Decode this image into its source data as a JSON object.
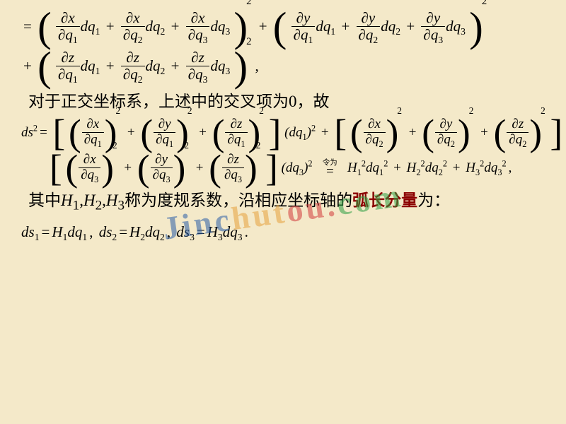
{
  "background_color": "#f4e9c9",
  "text_color": "#000000",
  "highlight_color": "#8b0000",
  "watermark": {
    "text": "Jinchutou.com",
    "colors": [
      "#2b5fa8",
      "#2b5fa8",
      "#2b5fa8",
      "#2b5fa8",
      "#e6a23c",
      "#e6a23c",
      "#e6a23c",
      "#d23c3c",
      "#d23c3c",
      "#d23c3c",
      "#2ea043",
      "#2ea043",
      "#2ea043"
    ]
  },
  "vars": {
    "x": "x",
    "y": "y",
    "z": "z",
    "q": "q",
    "dq": "dq",
    "ds": "ds",
    "d": "d",
    "H": "H",
    "partial": "∂"
  },
  "idx": [
    "1",
    "2",
    "3"
  ],
  "text1": "对于正交坐标系，上述中的交叉项为0，故",
  "text2_pre": "其中",
  "text2_mid": "称为度规系数，沿相应坐标轴的",
  "text2_arc": "弧长分量",
  "text2_post": "为：",
  "Hlabels": [
    "H",
    "H",
    "H"
  ],
  "eq_anno": "令为",
  "ds_rhs": [
    "H",
    "H",
    "H"
  ],
  "typography": {
    "base_font_size": 22,
    "cn_font_size": 23,
    "formula_small": 19
  }
}
